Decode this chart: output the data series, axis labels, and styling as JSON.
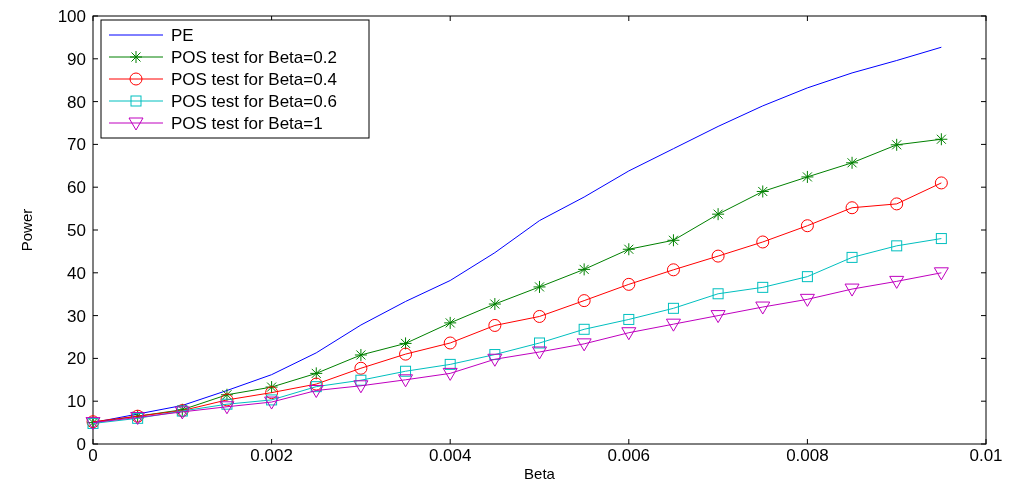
{
  "chart_data": {
    "type": "line",
    "xlabel": "Beta",
    "ylabel": "Power",
    "x": [
      0,
      0.0005,
      0.001,
      0.0015,
      0.002,
      0.0025,
      0.003,
      0.0035,
      0.004,
      0.0045,
      0.005,
      0.0055,
      0.006,
      0.0065,
      0.007,
      0.0075,
      0.008,
      0.0085,
      0.009,
      0.0095
    ],
    "series": [
      {
        "name": "PE",
        "color": "#0000ff",
        "marker": "none",
        "values": [
          5,
          7,
          9,
          12.5,
          16.2,
          21.3,
          27.8,
          33.3,
          38.2,
          44.7,
          52.2,
          57.7,
          63.8,
          69,
          74.2,
          79,
          83.2,
          86.7,
          89.6,
          92.7
        ]
      },
      {
        "name": "POS test for Beta=0.2",
        "color": "#008000",
        "marker": "cross",
        "values": [
          5,
          6.5,
          8,
          11.5,
          13.3,
          16.5,
          20.8,
          23.5,
          28.3,
          32.7,
          36.7,
          40.8,
          45.5,
          47.6,
          53.7,
          59,
          62.4,
          65.7,
          69.9,
          71.2
        ]
      },
      {
        "name": "POS test for Beta=0.4",
        "color": "#ff0000",
        "marker": "circle",
        "values": [
          5.2,
          6.5,
          7.8,
          10.3,
          12,
          14,
          17.7,
          21,
          23.6,
          27.7,
          29.8,
          33.5,
          37.3,
          40.7,
          43.9,
          47.2,
          51,
          55.2,
          56.1,
          61
        ]
      },
      {
        "name": "POS test for Beta=0.6",
        "color": "#00bfbf",
        "marker": "square",
        "values": [
          4.8,
          6,
          7.7,
          9.3,
          10.3,
          13.4,
          14.9,
          17,
          18.6,
          20.9,
          23.6,
          26.8,
          29.1,
          31.7,
          35.1,
          36.6,
          39.1,
          43.6,
          46.3,
          48
        ]
      },
      {
        "name": "POS test for Beta=1",
        "color": "#bf00bf",
        "marker": "triangle",
        "values": [
          5,
          6.2,
          7.5,
          8.7,
          9.8,
          12.5,
          13.6,
          15,
          16.5,
          19.8,
          21.5,
          23.4,
          26,
          28,
          30,
          32,
          33.8,
          36.2,
          38,
          40
        ]
      }
    ],
    "xlim": [
      0,
      0.01
    ],
    "xticks": [
      0,
      0.002,
      0.004,
      0.006,
      0.008,
      0.01
    ],
    "ylim": [
      0,
      100
    ],
    "yticks": [
      0,
      10,
      20,
      30,
      40,
      50,
      60,
      70,
      80,
      90,
      100
    ],
    "legend": "top left",
    "line_style": "solid"
  }
}
